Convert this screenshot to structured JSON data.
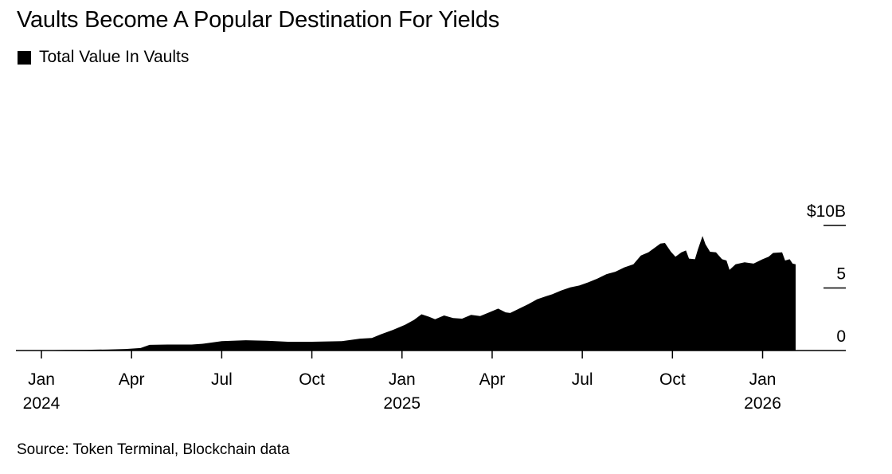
{
  "title": "Vaults Become A Popular Destination For Yields",
  "legend": [
    {
      "label": "Total Value In Vaults",
      "color": "#000000"
    }
  ],
  "source": "Source: Token Terminal, Blockchain data",
  "chart_data": {
    "type": "area",
    "title": "Vaults Become A Popular Destination For Yields",
    "series_name": "Total Value In Vaults",
    "color": "#000000",
    "xlabel": "",
    "ylabel": "",
    "x_range_months": [
      0,
      26.35
    ],
    "ylim": [
      0,
      10
    ],
    "y_ticks": [
      {
        "value": 0,
        "label": "0"
      },
      {
        "value": 5,
        "label": "5"
      },
      {
        "value": 10,
        "label": "$10B"
      }
    ],
    "x_ticks": [
      {
        "month": 0,
        "label": "Jan",
        "year": "2024"
      },
      {
        "month": 3,
        "label": "Apr",
        "year": ""
      },
      {
        "month": 6,
        "label": "Jul",
        "year": ""
      },
      {
        "month": 9,
        "label": "Oct",
        "year": ""
      },
      {
        "month": 12,
        "label": "Jan",
        "year": "2025"
      },
      {
        "month": 15,
        "label": "Apr",
        "year": ""
      },
      {
        "month": 18,
        "label": "Jul",
        "year": ""
      },
      {
        "month": 21,
        "label": "Oct",
        "year": ""
      },
      {
        "month": 24,
        "label": "Jan",
        "year": "2026"
      }
    ],
    "points": [
      {
        "x": 0.0,
        "y": 0.02
      },
      {
        "x": 0.8,
        "y": 0.05
      },
      {
        "x": 1.5,
        "y": 0.06
      },
      {
        "x": 2.2,
        "y": 0.08
      },
      {
        "x": 2.8,
        "y": 0.12
      },
      {
        "x": 3.3,
        "y": 0.2
      },
      {
        "x": 3.6,
        "y": 0.45
      },
      {
        "x": 4.2,
        "y": 0.48
      },
      {
        "x": 5.0,
        "y": 0.48
      },
      {
        "x": 5.4,
        "y": 0.55
      },
      {
        "x": 6.0,
        "y": 0.75
      },
      {
        "x": 6.8,
        "y": 0.82
      },
      {
        "x": 7.5,
        "y": 0.78
      },
      {
        "x": 8.2,
        "y": 0.7
      },
      {
        "x": 9.0,
        "y": 0.7
      },
      {
        "x": 10.0,
        "y": 0.75
      },
      {
        "x": 10.6,
        "y": 0.95
      },
      {
        "x": 11.0,
        "y": 1.0
      },
      {
        "x": 11.3,
        "y": 1.3
      },
      {
        "x": 11.7,
        "y": 1.65
      },
      {
        "x": 12.1,
        "y": 2.05
      },
      {
        "x": 12.4,
        "y": 2.45
      },
      {
        "x": 12.65,
        "y": 2.9
      },
      {
        "x": 12.9,
        "y": 2.7
      },
      {
        "x": 13.1,
        "y": 2.5
      },
      {
        "x": 13.4,
        "y": 2.8
      },
      {
        "x": 13.7,
        "y": 2.6
      },
      {
        "x": 14.0,
        "y": 2.55
      },
      {
        "x": 14.3,
        "y": 2.85
      },
      {
        "x": 14.6,
        "y": 2.75
      },
      {
        "x": 14.9,
        "y": 3.05
      },
      {
        "x": 15.2,
        "y": 3.35
      },
      {
        "x": 15.45,
        "y": 3.05
      },
      {
        "x": 15.6,
        "y": 3.0
      },
      {
        "x": 15.9,
        "y": 3.35
      },
      {
        "x": 16.2,
        "y": 3.7
      },
      {
        "x": 16.5,
        "y": 4.1
      },
      {
        "x": 16.8,
        "y": 4.35
      },
      {
        "x": 17.0,
        "y": 4.5
      },
      {
        "x": 17.3,
        "y": 4.8
      },
      {
        "x": 17.6,
        "y": 5.05
      },
      {
        "x": 17.9,
        "y": 5.2
      },
      {
        "x": 18.2,
        "y": 5.45
      },
      {
        "x": 18.5,
        "y": 5.75
      },
      {
        "x": 18.8,
        "y": 6.1
      },
      {
        "x": 19.1,
        "y": 6.3
      },
      {
        "x": 19.4,
        "y": 6.65
      },
      {
        "x": 19.7,
        "y": 6.9
      },
      {
        "x": 19.95,
        "y": 7.6
      },
      {
        "x": 20.2,
        "y": 7.85
      },
      {
        "x": 20.4,
        "y": 8.2
      },
      {
        "x": 20.6,
        "y": 8.55
      },
      {
        "x": 20.75,
        "y": 8.6
      },
      {
        "x": 20.95,
        "y": 7.9
      },
      {
        "x": 21.1,
        "y": 7.5
      },
      {
        "x": 21.3,
        "y": 7.85
      },
      {
        "x": 21.45,
        "y": 8.0
      },
      {
        "x": 21.55,
        "y": 7.35
      },
      {
        "x": 21.75,
        "y": 7.3
      },
      {
        "x": 21.85,
        "y": 8.1
      },
      {
        "x": 22.0,
        "y": 9.15
      },
      {
        "x": 22.1,
        "y": 8.5
      },
      {
        "x": 22.25,
        "y": 7.9
      },
      {
        "x": 22.45,
        "y": 7.85
      },
      {
        "x": 22.65,
        "y": 7.3
      },
      {
        "x": 22.8,
        "y": 7.2
      },
      {
        "x": 22.9,
        "y": 6.45
      },
      {
        "x": 23.1,
        "y": 6.9
      },
      {
        "x": 23.4,
        "y": 7.05
      },
      {
        "x": 23.7,
        "y": 6.95
      },
      {
        "x": 24.0,
        "y": 7.3
      },
      {
        "x": 24.2,
        "y": 7.5
      },
      {
        "x": 24.35,
        "y": 7.8
      },
      {
        "x": 24.65,
        "y": 7.85
      },
      {
        "x": 24.75,
        "y": 7.2
      },
      {
        "x": 24.9,
        "y": 7.3
      },
      {
        "x": 25.0,
        "y": 6.95
      },
      {
        "x": 25.1,
        "y": 6.9
      }
    ]
  }
}
